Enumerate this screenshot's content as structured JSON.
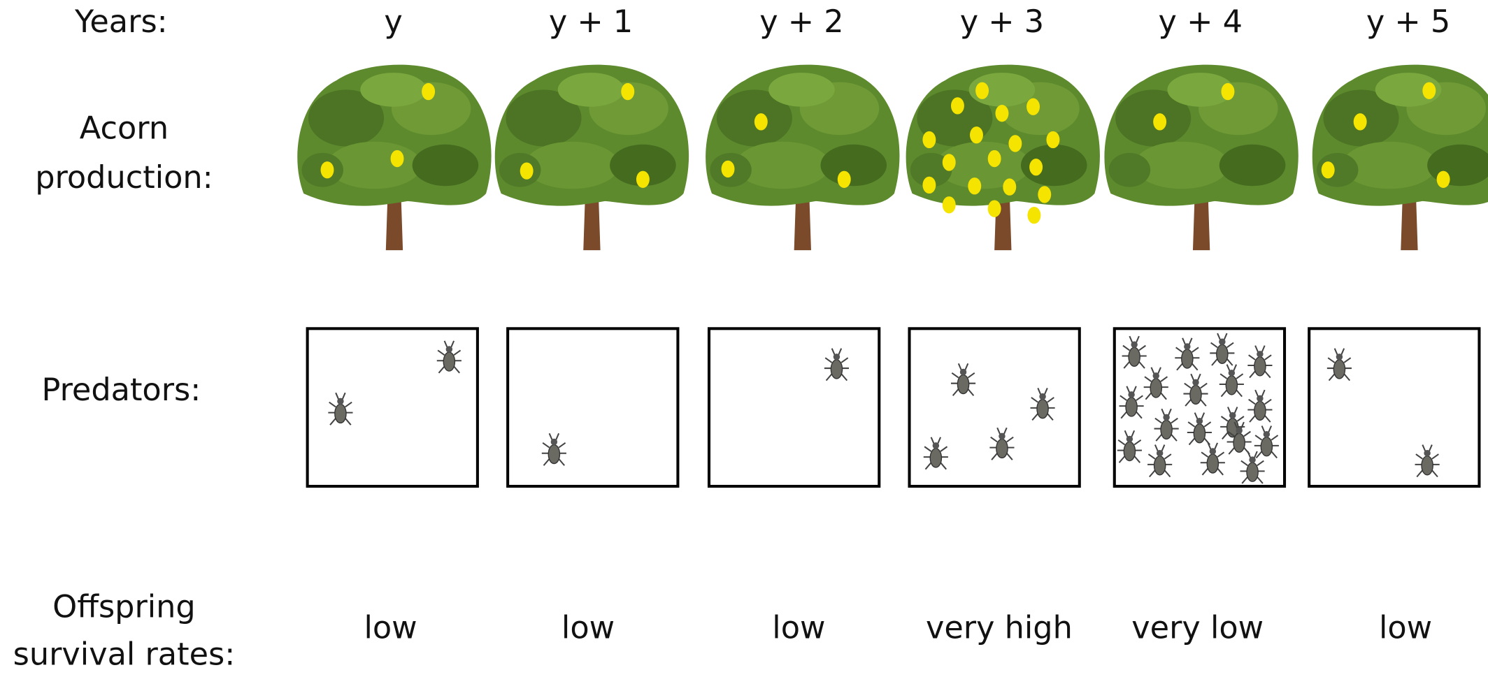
{
  "row_labels": {
    "years": "Years:",
    "acorn": [
      "Acorn",
      "production:"
    ],
    "predators": "Predators:",
    "offspring": [
      "Offspring",
      "survival rates:"
    ]
  },
  "years": [
    "y",
    "y + 1",
    "y + 2",
    "y + 3",
    "y + 4",
    "y + 5"
  ],
  "survival_rates": [
    "low",
    "low",
    "low",
    "very high",
    "very low",
    "low"
  ]
}
